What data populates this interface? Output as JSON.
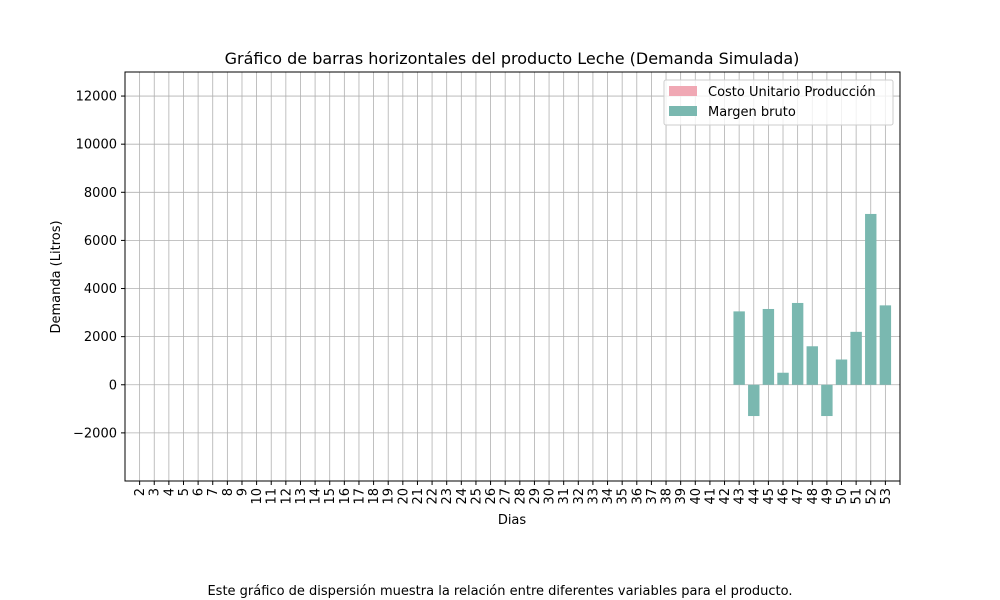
{
  "chart_data": {
    "type": "bar",
    "title": "Gráfico de barras horizontales del producto Leche (Demanda Simulada)",
    "xlabel": "Dias",
    "ylabel": "Demanda (Litros)",
    "ylim": [
      -4000,
      13000
    ],
    "yticks": [
      -2000,
      0,
      2000,
      4000,
      6000,
      8000,
      10000,
      12000
    ],
    "yticklabels": [
      "−2000",
      "0",
      "2000",
      "4000",
      "6000",
      "8000",
      "10000",
      "12000"
    ],
    "grid": true,
    "legend_position": "top-right",
    "categories": [
      "2",
      "3",
      "4",
      "5",
      "6",
      "7",
      "8",
      "9",
      "10",
      "11",
      "12",
      "13",
      "14",
      "15",
      "16",
      "17",
      "18",
      "19",
      "20",
      "21",
      "22",
      "23",
      "24",
      "25",
      "26",
      "27",
      "28",
      "29",
      "30",
      "31",
      "32",
      "33",
      "34",
      "35",
      "36",
      "37",
      "38",
      "39",
      "40",
      "41",
      "42",
      "43",
      "44",
      "45",
      "46",
      "47",
      "48",
      "49",
      "50",
      "51",
      "52",
      "53"
    ],
    "series": [
      {
        "name": "Costo Unitario Producción",
        "color": "#f0a8b4",
        "values": [
          0,
          0,
          0,
          0,
          0,
          0,
          0,
          0,
          0,
          0,
          0,
          0,
          0,
          0,
          0,
          0,
          0,
          0,
          0,
          0,
          0,
          0,
          0,
          0,
          0,
          0,
          0,
          0,
          0,
          0,
          0,
          0,
          0,
          0,
          0,
          0,
          0,
          0,
          0,
          0,
          0,
          0,
          0,
          0,
          0,
          0,
          0,
          0,
          0,
          0,
          0,
          0
        ]
      },
      {
        "name": "Margen bruto",
        "color": "#7ab8b0",
        "values": [
          0,
          0,
          0,
          0,
          0,
          0,
          0,
          0,
          0,
          0,
          0,
          0,
          0,
          0,
          0,
          0,
          0,
          0,
          0,
          0,
          0,
          0,
          0,
          0,
          0,
          0,
          0,
          0,
          0,
          0,
          0,
          0,
          0,
          0,
          0,
          0,
          0,
          0,
          0,
          0,
          0,
          3050,
          -1300,
          3150,
          500,
          3400,
          1600,
          -1300,
          1050,
          2200,
          7100,
          3300
        ]
      }
    ]
  },
  "caption": "Este gráfico de dispersión muestra la relación entre diferentes variables para el producto."
}
